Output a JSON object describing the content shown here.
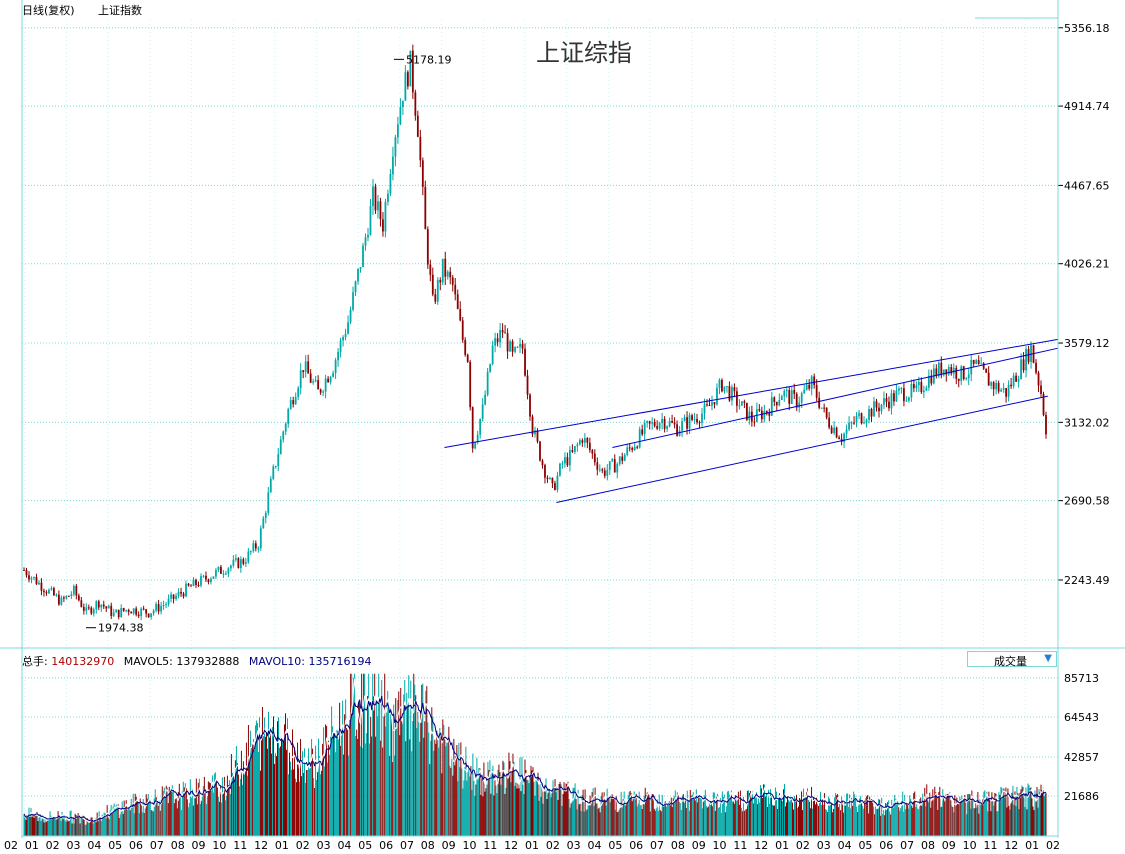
{
  "header": {
    "period_label": "日线(复权)",
    "index_name": "上证指数"
  },
  "chart_title": "上证综指",
  "volume_legend": {
    "total_label": "总手:",
    "total_value": "140132970",
    "mavol5_label": "MAVOL5:",
    "mavol5_value": "137932888",
    "mavol10_label": "MAVOL10:",
    "mavol10_value": "135716194"
  },
  "volume_dropdown": {
    "label": "成交量",
    "arrow": "▼"
  },
  "colors": {
    "up": "#00a8a8",
    "down": "#8b0000",
    "grid": "#7fd8d8",
    "channel": "#0000cc",
    "ma_white": "#ffffff",
    "ma_navy": "#000080"
  },
  "chart_data": [
    {
      "type": "candlestick",
      "title": "上证综指",
      "y_ticks": [
        "5356.18",
        "4914.74",
        "4467.65",
        "4026.21",
        "3579.12",
        "3132.02",
        "2690.58",
        "2243.49"
      ],
      "ylim": [
        1860,
        5400
      ],
      "x_ticks": [
        "02",
        "01",
        "02",
        "03",
        "04",
        "05",
        "06",
        "07",
        "08",
        "09",
        "10",
        "11",
        "12",
        "01",
        "02",
        "03",
        "04",
        "05",
        "06",
        "07",
        "08",
        "09",
        "10",
        "11",
        "12",
        "01",
        "02",
        "03",
        "04",
        "05",
        "06",
        "07",
        "08",
        "09",
        "10",
        "11",
        "12",
        "01",
        "02",
        "03",
        "04",
        "05",
        "06",
        "07",
        "08",
        "09",
        "10",
        "11",
        "12",
        "01",
        "02"
      ],
      "annotations": [
        {
          "text": "5178.19",
          "value": 5178.19
        },
        {
          "text": "1974.38",
          "value": 1974.38
        }
      ],
      "close_trend": [
        [
          0,
          2300
        ],
        [
          8,
          2200
        ],
        [
          15,
          2120
        ],
        [
          20,
          2180
        ],
        [
          25,
          2060
        ],
        [
          30,
          2120
        ],
        [
          36,
          2050
        ],
        [
          42,
          2080
        ],
        [
          50,
          2060
        ],
        [
          58,
          2120
        ],
        [
          66,
          2200
        ],
        [
          74,
          2260
        ],
        [
          82,
          2320
        ],
        [
          88,
          2350
        ],
        [
          94,
          2450
        ],
        [
          100,
          2850
        ],
        [
          106,
          3200
        ],
        [
          112,
          3450
        ],
        [
          118,
          3300
        ],
        [
          124,
          3450
        ],
        [
          130,
          3700
        ],
        [
          136,
          4100
        ],
        [
          140,
          4400
        ],
        [
          144,
          4250
        ],
        [
          148,
          4700
        ],
        [
          152,
          5000
        ],
        [
          155,
          5150
        ],
        [
          158,
          4800
        ],
        [
          161,
          4200
        ],
        [
          164,
          3800
        ],
        [
          168,
          4000
        ],
        [
          172,
          3900
        ],
        [
          176,
          3600
        ],
        [
          178,
          3500
        ],
        [
          180,
          3000
        ],
        [
          184,
          3200
        ],
        [
          188,
          3550
        ],
        [
          192,
          3650
        ],
        [
          196,
          3500
        ],
        [
          200,
          3550
        ],
        [
          204,
          3100
        ],
        [
          208,
          2900
        ],
        [
          212,
          2750
        ],
        [
          216,
          2900
        ],
        [
          220,
          2950
        ],
        [
          224,
          3050
        ],
        [
          228,
          2950
        ],
        [
          232,
          2850
        ],
        [
          238,
          2900
        ],
        [
          244,
          3000
        ],
        [
          250,
          3100
        ],
        [
          256,
          3150
        ],
        [
          262,
          3100
        ],
        [
          268,
          3150
        ],
        [
          274,
          3200
        ],
        [
          280,
          3350
        ],
        [
          286,
          3250
        ],
        [
          292,
          3150
        ],
        [
          298,
          3200
        ],
        [
          304,
          3300
        ],
        [
          310,
          3250
        ],
        [
          316,
          3350
        ],
        [
          322,
          3150
        ],
        [
          328,
          3050
        ],
        [
          334,
          3150
        ],
        [
          340,
          3200
        ],
        [
          346,
          3250
        ],
        [
          352,
          3300
        ],
        [
          358,
          3300
        ],
        [
          364,
          3400
        ],
        [
          370,
          3450
        ],
        [
          376,
          3400
        ],
        [
          382,
          3450
        ],
        [
          388,
          3350
        ],
        [
          394,
          3300
        ],
        [
          400,
          3450
        ],
        [
          404,
          3550
        ],
        [
          408,
          3300
        ],
        [
          410,
          3100
        ]
      ],
      "channel_lines": [
        {
          "x": [
            0.415,
            1.0
          ],
          "y": [
            2990,
            3600
          ]
        },
        {
          "x": [
            0.525,
            0.99
          ],
          "y": [
            2680,
            3280
          ]
        },
        {
          "x": [
            0.58,
            1.0
          ],
          "y": [
            2990,
            3550
          ]
        }
      ]
    },
    {
      "type": "bar",
      "title": "成交量",
      "y_ticks": [
        "85713",
        "64543",
        "42857",
        "21686"
      ],
      "ylim": [
        0,
        90000
      ],
      "series": [
        {
          "name": "MAVOL5",
          "values": []
        },
        {
          "name": "MAVOL10",
          "values": []
        }
      ],
      "volume_trend": [
        [
          0,
          12000
        ],
        [
          20,
          10000
        ],
        [
          40,
          11000
        ],
        [
          60,
          9000
        ],
        [
          80,
          12000
        ],
        [
          100,
          16000
        ],
        [
          130,
          20000
        ],
        [
          160,
          22000
        ],
        [
          200,
          28000
        ],
        [
          230,
          50000
        ],
        [
          250,
          60000
        ],
        [
          270,
          45000
        ],
        [
          290,
          40000
        ],
        [
          310,
          55000
        ],
        [
          330,
          70000
        ],
        [
          350,
          75000
        ],
        [
          370,
          60000
        ],
        [
          390,
          68000
        ],
        [
          410,
          55000
        ],
        [
          430,
          40000
        ],
        [
          460,
          30000
        ],
        [
          490,
          35000
        ],
        [
          520,
          25000
        ],
        [
          560,
          20000
        ],
        [
          600,
          19000
        ],
        [
          650,
          20000
        ],
        [
          700,
          18000
        ],
        [
          740,
          22000
        ],
        [
          780,
          20000
        ],
        [
          820,
          19000
        ],
        [
          860,
          16000
        ],
        [
          900,
          21000
        ],
        [
          940,
          18000
        ],
        [
          980,
          20000
        ],
        [
          1020,
          22000
        ]
      ]
    }
  ]
}
